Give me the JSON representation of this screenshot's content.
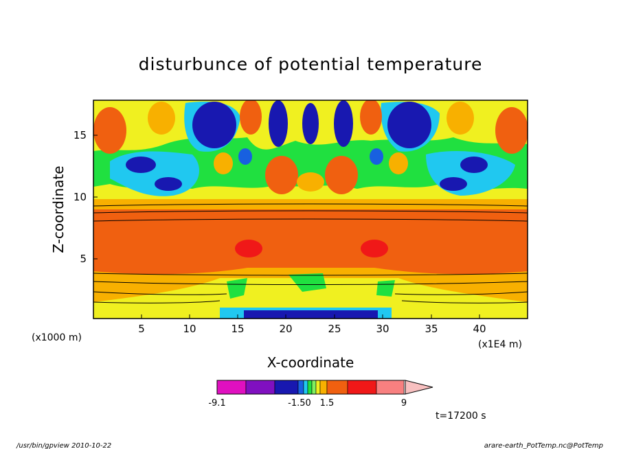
{
  "chart_data": {
    "type": "heatmap",
    "title": "disturbunce of potential temperature",
    "xlabel": "X-coordinate",
    "ylabel": "Z-coordinate",
    "x_unit": "(x1E4 m)",
    "y_unit": "(x1000 m)",
    "x_ticks": [
      "5",
      "10",
      "15",
      "20",
      "25",
      "30",
      "35",
      "40"
    ],
    "y_ticks": [
      "5",
      "10",
      "15"
    ],
    "xlim": [
      0.3,
      45
    ],
    "ylim": [
      0.3,
      17.6
    ],
    "colorbar": {
      "tick_labels": [
        "-9.1",
        "-1.50",
        "1.5",
        "9"
      ],
      "colors": [
        "#e010c0",
        "#8010c0",
        "#1818b0",
        "#1860e0",
        "#20c8f0",
        "#20e040",
        "#80f060",
        "#f0f020",
        "#f8b000",
        "#f06010",
        "#f01818",
        "#f88080",
        "#f8c0c0"
      ]
    },
    "time_label": "t=17200 s",
    "footer_left": "/usr/bin/gpview   2010-10-22",
    "footer_right": "arare-earth_PotTemp.nc@PotTemp"
  }
}
